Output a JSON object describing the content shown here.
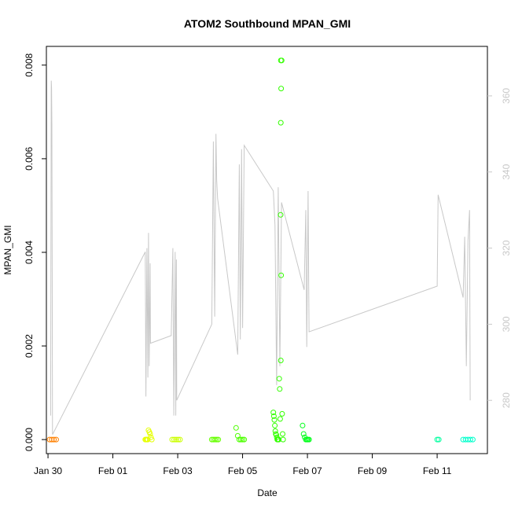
{
  "chart_data": {
    "type": "scatter",
    "title": "ATOM2 Southbound MPAN_GMI",
    "xlabel": "Date",
    "ylabel": "MPAN_GMI",
    "x_ticks": [
      "Jan 30",
      "Feb 01",
      "Feb 03",
      "Feb 05",
      "Feb 07",
      "Feb 09",
      "Feb 11"
    ],
    "y_ticks": [
      "0.000",
      "0.002",
      "0.004",
      "0.006",
      "0.008"
    ],
    "y_right_ticks": [
      "280",
      "300",
      "320",
      "340",
      "360"
    ],
    "xlim_day": [
      -2.05,
      11.55
    ],
    "ylim": [
      -0.0003,
      0.0084
    ],
    "y_right_lim": [
      266,
      373
    ],
    "grid": false,
    "series": [
      {
        "role": "MPAN_GMI points (colored by time)",
        "marker": "open-circle",
        "groups": [
          {
            "color": "#FF8000",
            "day_range": [
              -1.95,
              -1.75
            ],
            "values": [
              0.0,
              0.0,
              0.0,
              0.0
            ]
          },
          {
            "color": "#E6FF00",
            "day_range": [
              1.0,
              1.2
            ],
            "values": [
              0.0,
              0.0,
              0.0,
              0.0,
              0.0002,
              0.00016,
              0.00012,
              5e-05,
              0.0
            ]
          },
          {
            "color": "#CCFF00",
            "day_range": [
              1.83,
              2.07
            ],
            "values": [
              0.0,
              0.0,
              0.0,
              0.0,
              0.0
            ]
          },
          {
            "color": "#66FF00",
            "day_range": [
              3.05,
              3.25
            ],
            "values": [
              0.0,
              0.0,
              0.0,
              0.0,
              0.0
            ]
          },
          {
            "color": "#4DFF00",
            "day_range": [
              3.8,
              4.05
            ],
            "values": [
              0.00025,
              8e-05,
              0.0,
              0.0,
              0.0,
              0.0
            ]
          },
          {
            "color": "#33FF00",
            "day_range": [
              4.95,
              5.25
            ],
            "values": [
              0.00058,
              0.0005,
              0.00042,
              0.0003,
              0.00018,
              0.00012,
              0.0001,
              5e-05,
              0.0,
              0.0,
              0.0,
              0.0,
              0.0013,
              0.00108,
              0.00044,
              0.0048,
              0.0075,
              0.0081,
              0.00055,
              0.00012,
              0.0
            ]
          },
          {
            "color": "#00FF1A",
            "day_range": [
              5.85,
              6.05
            ],
            "values": [
              0.0003,
              0.00012,
              5e-05,
              0.0,
              0.0,
              0.0,
              0.0
            ]
          },
          {
            "color": "#00FFA0",
            "day_range": [
              10.0,
              10.05
            ],
            "values": [
              0.0,
              0.0
            ]
          },
          {
            "color": "#00FFCC",
            "day_range": [
              10.8,
              11.1
            ],
            "values": [
              0.0,
              0.0,
              0.0,
              0.0,
              0.0
            ]
          }
        ],
        "outliers": [
          {
            "day": 5.18,
            "value": 0.0081,
            "color": "#33FF00"
          },
          {
            "day": 5.18,
            "value": 0.00677,
            "color": "#33FF00"
          },
          {
            "day": 5.19,
            "value": 0.00351,
            "color": "#33FF00"
          },
          {
            "day": 5.18,
            "value": 0.00169,
            "color": "#33FF00"
          }
        ]
      },
      {
        "role": "secondary grey line (right axis)",
        "color": "#c8c8c8",
        "points": [
          [
            -1.92,
            276
          ],
          [
            -1.9,
            364
          ],
          [
            -1.89,
            362
          ],
          [
            -1.88,
            352
          ],
          [
            -1.86,
            271
          ],
          [
            1.0,
            319
          ],
          [
            1.02,
            281
          ],
          [
            1.05,
            320
          ],
          [
            1.08,
            286
          ],
          [
            1.1,
            324
          ],
          [
            1.12,
            289
          ],
          [
            1.15,
            316
          ],
          [
            1.16,
            295
          ],
          [
            1.8,
            297
          ],
          [
            1.85,
            320
          ],
          [
            1.88,
            276
          ],
          [
            1.92,
            319
          ],
          [
            1.94,
            276
          ],
          [
            1.96,
            317
          ],
          [
            1.97,
            280
          ],
          [
            3.05,
            300
          ],
          [
            3.1,
            348
          ],
          [
            3.14,
            302
          ],
          [
            3.18,
            350
          ],
          [
            3.2,
            338
          ],
          [
            3.23,
            333
          ],
          [
            3.85,
            292
          ],
          [
            3.9,
            342
          ],
          [
            3.93,
            296
          ],
          [
            3.97,
            346
          ],
          [
            4.0,
            299
          ],
          [
            4.05,
            347
          ],
          [
            4.95,
            335
          ],
          [
            5.0,
            326
          ],
          [
            5.05,
            284
          ],
          [
            5.1,
            336
          ],
          [
            5.15,
            289
          ],
          [
            5.2,
            332
          ],
          [
            5.9,
            309
          ],
          [
            5.95,
            330
          ],
          [
            5.98,
            294
          ],
          [
            6.02,
            335
          ],
          [
            6.05,
            298
          ],
          [
            10.0,
            310
          ],
          [
            10.03,
            334
          ],
          [
            10.8,
            307
          ],
          [
            10.85,
            323
          ],
          [
            10.9,
            289
          ],
          [
            10.95,
            322
          ],
          [
            11.0,
            330
          ],
          [
            11.02,
            280
          ]
        ]
      }
    ]
  }
}
